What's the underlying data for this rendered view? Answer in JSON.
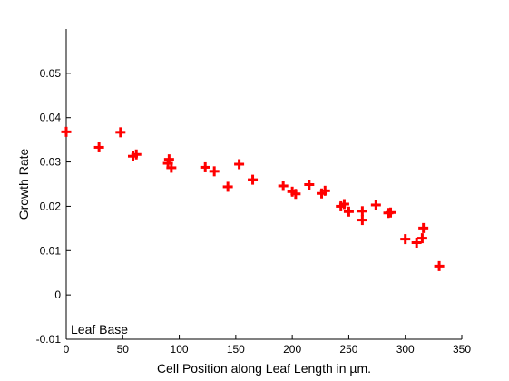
{
  "chart_data": {
    "type": "scatter",
    "title": "",
    "xlabel": "Cell Position along Leaf Length in µm.",
    "ylabel": "Growth Rate",
    "xlim": [
      0,
      350
    ],
    "ylim": [
      -0.01,
      0.06
    ],
    "x_ticks": [
      0,
      50,
      100,
      150,
      200,
      250,
      300,
      350
    ],
    "x_tick_labels": [
      "0",
      "50",
      "100",
      "150",
      "200",
      "250",
      "300",
      "350"
    ],
    "y_ticks": [
      -0.01,
      0,
      0.01,
      0.02,
      0.03,
      0.04,
      0.05
    ],
    "y_tick_labels": [
      "-0.01",
      "0",
      "0.01",
      "0.02",
      "0.03",
      "0.04",
      "0.05"
    ],
    "grid": false,
    "marker": "plus",
    "marker_color": "#ff0000",
    "annotation": "Leaf Base",
    "series": [
      {
        "points": [
          [
            0,
            0.0368
          ],
          [
            29,
            0.0333
          ],
          [
            48,
            0.0367
          ],
          [
            59,
            0.0313
          ],
          [
            62,
            0.0317
          ],
          [
            90,
            0.0297
          ],
          [
            91,
            0.0306
          ],
          [
            93,
            0.0287
          ],
          [
            123,
            0.0288
          ],
          [
            131,
            0.0279
          ],
          [
            143,
            0.0244
          ],
          [
            153,
            0.0295
          ],
          [
            165,
            0.026
          ],
          [
            192,
            0.0246
          ],
          [
            200,
            0.0233
          ],
          [
            203,
            0.0228
          ],
          [
            215,
            0.0249
          ],
          [
            226,
            0.0229
          ],
          [
            229,
            0.0235
          ],
          [
            243,
            0.02
          ],
          [
            246,
            0.0205
          ],
          [
            250,
            0.0188
          ],
          [
            262,
            0.0189
          ],
          [
            262,
            0.0169
          ],
          [
            274,
            0.0203
          ],
          [
            285,
            0.0185
          ],
          [
            287,
            0.0186
          ],
          [
            300,
            0.0126
          ],
          [
            310,
            0.0118
          ],
          [
            315,
            0.0128
          ],
          [
            316,
            0.0151
          ],
          [
            330,
            0.0065
          ]
        ]
      }
    ]
  }
}
